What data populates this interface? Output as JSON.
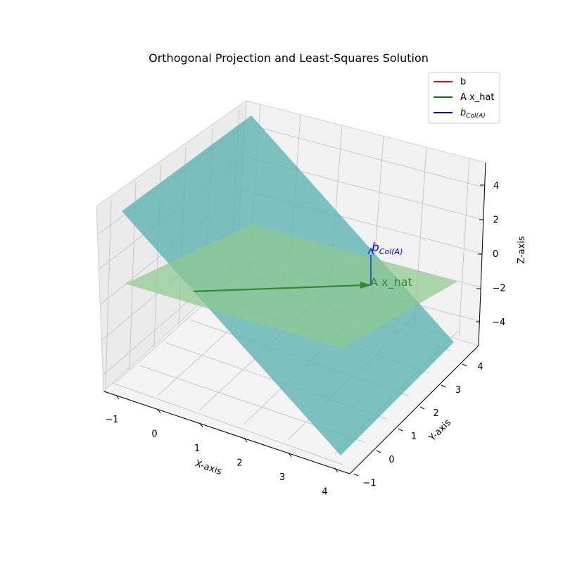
{
  "chart_data": {
    "type": "3d-surface",
    "title": "Orthogonal Projection and Least-Squares Solution",
    "xlabel": "X-axis",
    "ylabel": "Y-axis",
    "zlabel": "Z-axis",
    "x_ticks": [
      "−1",
      "0",
      "1",
      "2",
      "3",
      "4"
    ],
    "y_ticks": [
      "−1",
      "0",
      "1",
      "2",
      "3",
      "4"
    ],
    "z_ticks": [
      "−4",
      "−2",
      "0",
      "2",
      "4"
    ],
    "xlim": [
      -1.2,
      4.2
    ],
    "ylim": [
      -1.2,
      4.2
    ],
    "zlim": [
      -5,
      5
    ],
    "grid": true,
    "legend_position": "top-right",
    "legend": [
      {
        "label": "b",
        "color": "#ff0000"
      },
      {
        "label": "A x_hat",
        "color": "#008000"
      },
      {
        "label": "b",
        "subscript": "Col(A)",
        "color": "#0000ff"
      }
    ],
    "annotations": {
      "ax_hat_label": "A x_hat",
      "b_col_label": "b",
      "b_col_sub": "Col(A)"
    },
    "surfaces": [
      {
        "name": "plane-1",
        "color": "#5fb3b3",
        "opacity": 0.8
      },
      {
        "name": "plane-2",
        "color": "#8fc98f",
        "opacity": 0.75
      }
    ],
    "vectors": [
      {
        "name": "A x_hat",
        "color": "#2e8b2e"
      },
      {
        "name": "b_Col(A)",
        "color": "#1f3fbf"
      }
    ]
  }
}
